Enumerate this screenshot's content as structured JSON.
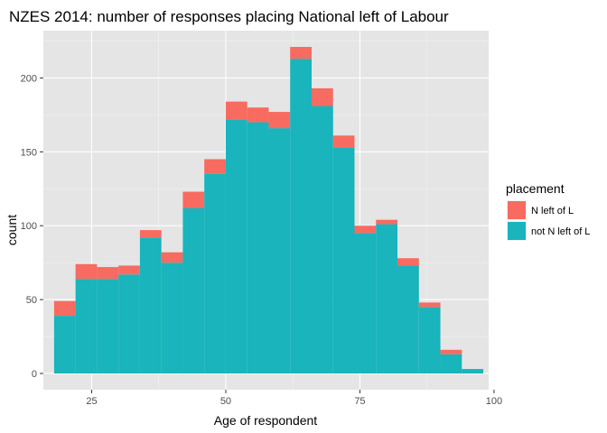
{
  "chart_data": {
    "type": "bar",
    "subtype": "stacked-histogram",
    "title": "NZES 2014: number of responses placing National left of Labour",
    "xlabel": "Age of respondent",
    "ylabel": "count",
    "xlim": [
      16,
      99
    ],
    "ylim": [
      -11,
      232
    ],
    "xticks": [
      25,
      50,
      75,
      100
    ],
    "yticks": [
      0,
      50,
      100,
      150,
      200
    ],
    "xtick_labels": [
      "25",
      "50",
      "75",
      "100"
    ],
    "ytick_labels": [
      "0",
      "50",
      "100",
      "150",
      "200"
    ],
    "bin_width": 4,
    "bins": [
      18,
      22,
      26,
      30,
      34,
      38,
      42,
      46,
      50,
      54,
      58,
      62,
      66,
      70,
      74,
      78,
      82,
      86,
      90,
      94
    ],
    "series": [
      {
        "name": "not N left of L",
        "color": "#19b4bc",
        "values": [
          39,
          64,
          64,
          67,
          92,
          75,
          112,
          135,
          172,
          170,
          166,
          213,
          181,
          153,
          95,
          101,
          73,
          45,
          13,
          3
        ]
      },
      {
        "name": "N left of L",
        "color": "#f76b61",
        "values": [
          10,
          10,
          8,
          6,
          5,
          7,
          11,
          10,
          12,
          10,
          11,
          8,
          12,
          8,
          5,
          3,
          5,
          3,
          3,
          0
        ]
      }
    ],
    "grid": true,
    "legend": {
      "title": "placement",
      "placement": "right",
      "entries": [
        {
          "label": "N left of L",
          "color": "#f76b61"
        },
        {
          "label": "not N left of L",
          "color": "#19b4bc"
        }
      ]
    },
    "panel_background": "#e5e5e5"
  }
}
